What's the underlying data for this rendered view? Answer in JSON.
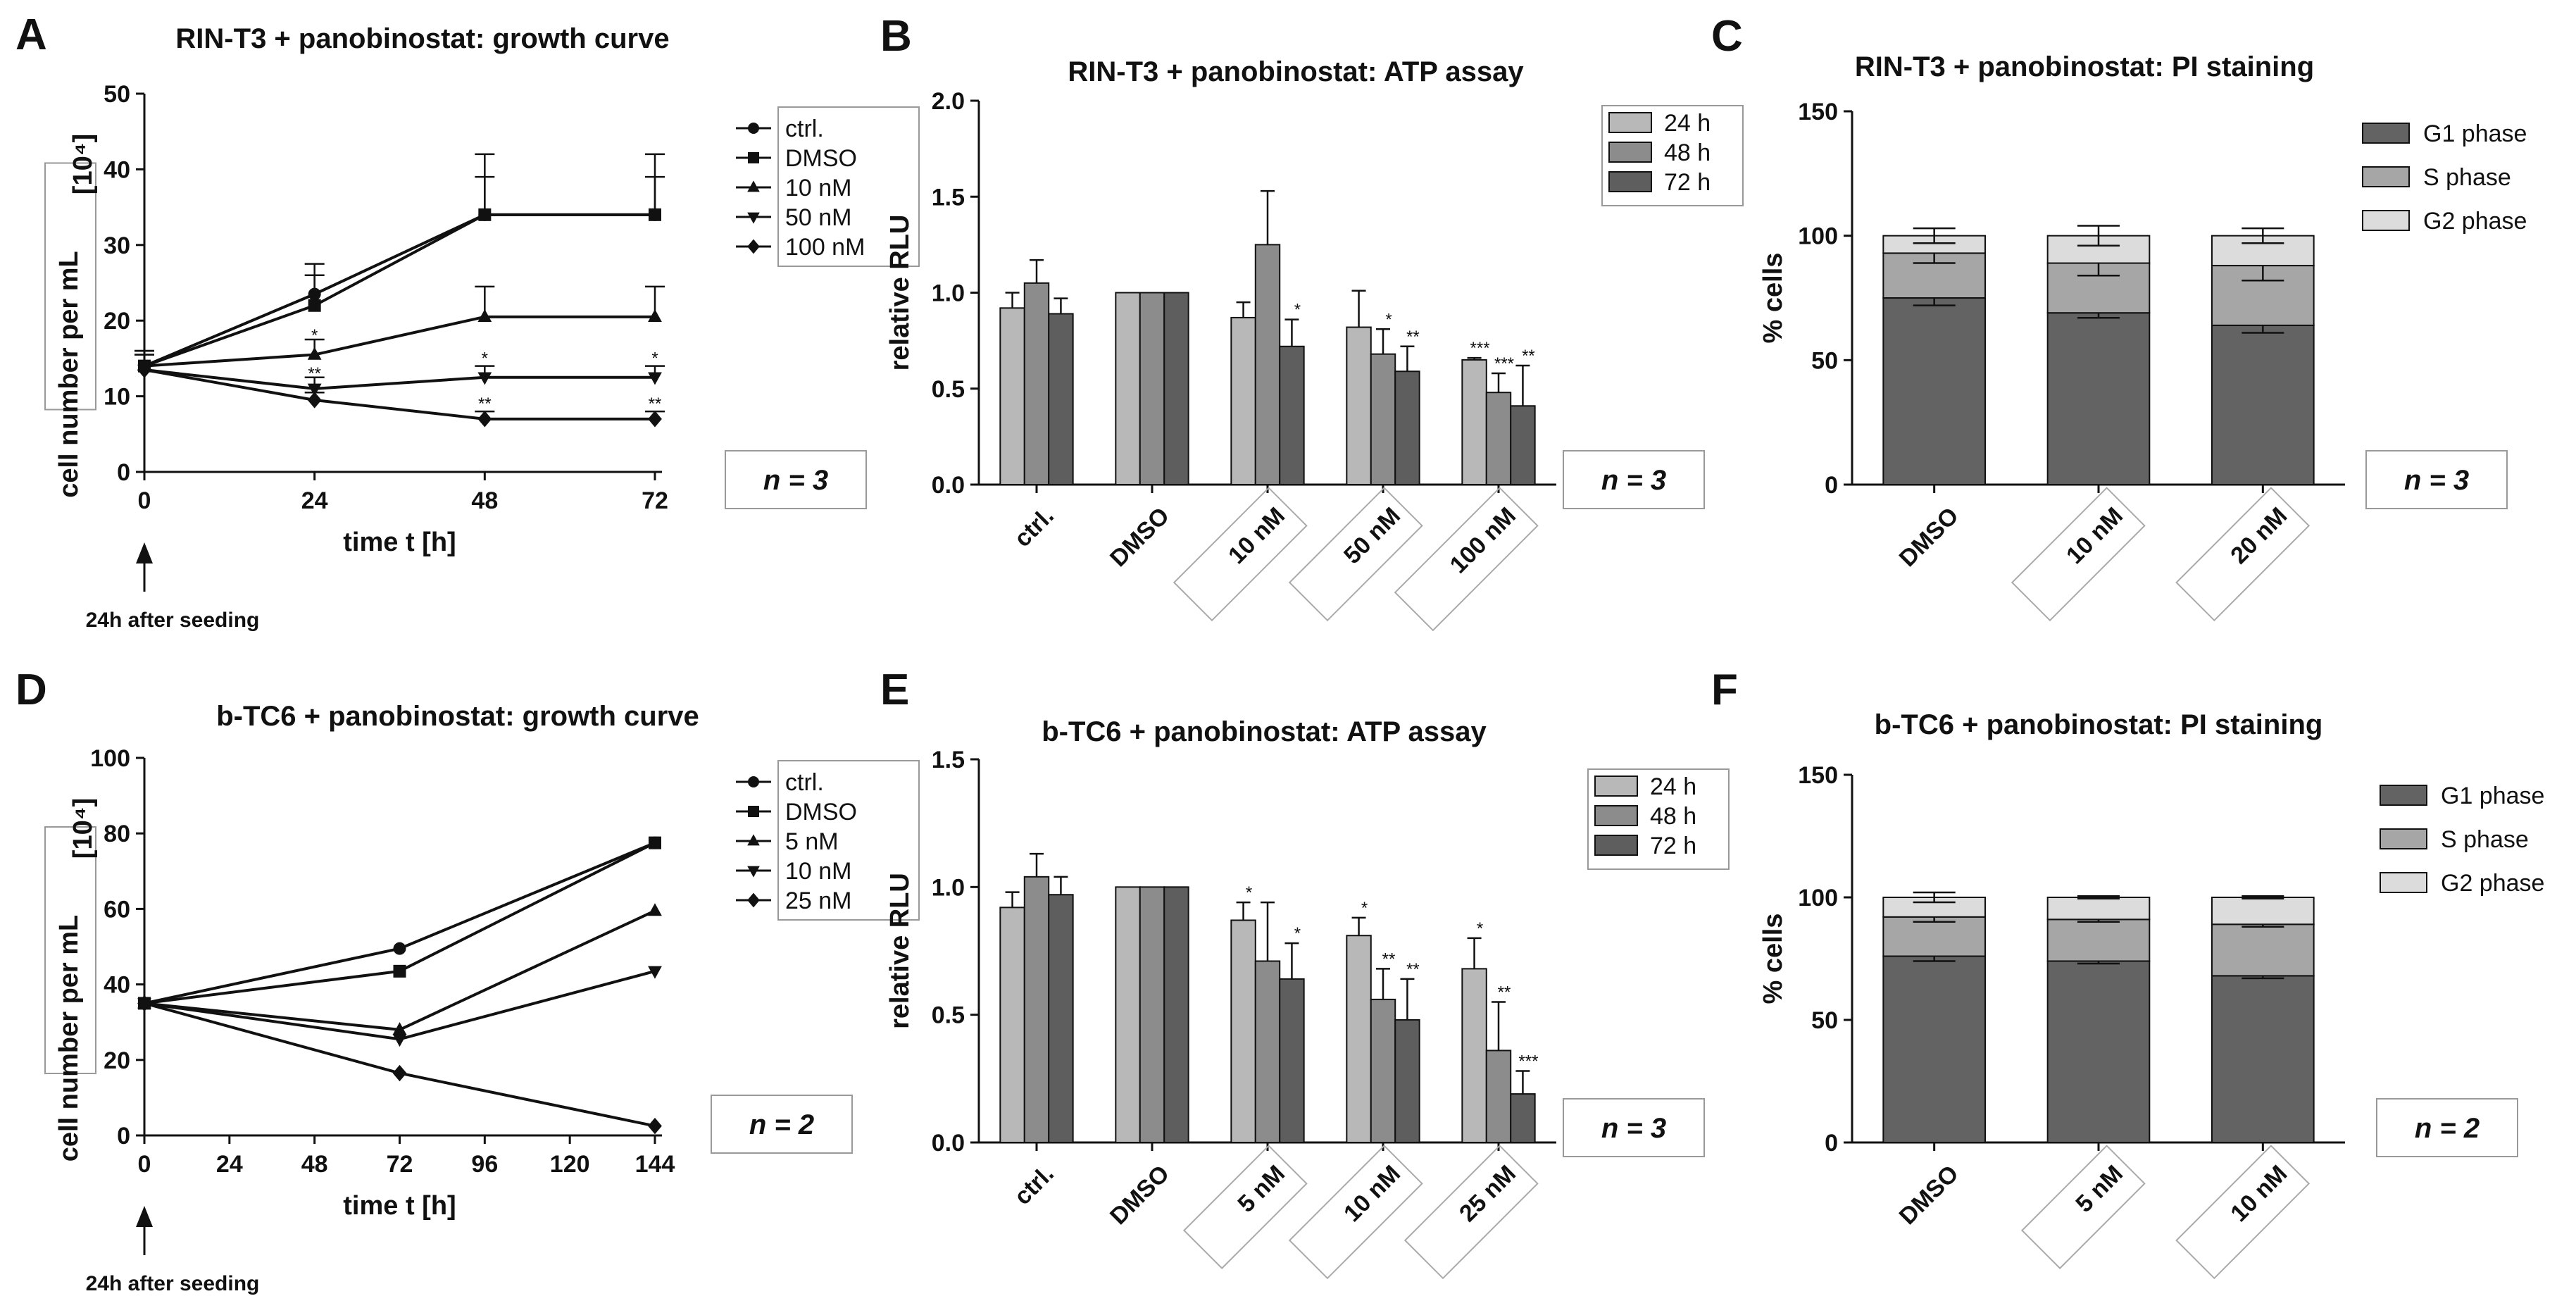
{
  "chart_data": [
    {
      "panel": "A",
      "type": "line",
      "title": "RIN-T3 + panobinostat: growth curve",
      "xlabel": "time t [h]",
      "ylabel": "cell number per mL",
      "yunit": "[10⁴]",
      "x": [
        0,
        24,
        48,
        72
      ],
      "xticks": [
        "0",
        "24",
        "48",
        "72"
      ],
      "ylim": [
        0,
        50
      ],
      "yticks": [
        "0",
        "10",
        "20",
        "30",
        "40",
        "50"
      ],
      "series": [
        {
          "name": "ctrl.",
          "marker": "circle",
          "values": [
            14,
            23.5,
            34,
            34
          ],
          "err": [
            2,
            4,
            5,
            5
          ]
        },
        {
          "name": "DMSO",
          "marker": "square",
          "values": [
            14,
            22,
            34,
            34
          ],
          "err": [
            2,
            4,
            8,
            8
          ]
        },
        {
          "name": "10 nM",
          "marker": "triangle-up",
          "values": [
            14,
            15.5,
            20.5,
            20.5
          ],
          "err": [
            2,
            2,
            4,
            4
          ]
        },
        {
          "name": "50 nM",
          "marker": "triangle-down",
          "values": [
            13.5,
            11,
            12.5,
            12.5
          ],
          "err": [
            2,
            1.5,
            1.5,
            1.5
          ]
        },
        {
          "name": "100 nM",
          "marker": "diamond",
          "values": [
            13.5,
            9.5,
            7,
            7
          ],
          "err": [
            2,
            1,
            1,
            1
          ]
        }
      ],
      "stars": [
        {
          "x": 24,
          "y": 17.3,
          "text": "*"
        },
        {
          "x": 24,
          "y": 12.3,
          "text": "**"
        },
        {
          "x": 48,
          "y": 14.3,
          "text": "*"
        },
        {
          "x": 48,
          "y": 8.3,
          "text": "**"
        },
        {
          "x": 72,
          "y": 14.3,
          "text": "*"
        },
        {
          "x": 72,
          "y": 8.3,
          "text": "**"
        }
      ],
      "n_label": "n = 3",
      "note": "24h after seeding"
    },
    {
      "panel": "B",
      "type": "bar",
      "title": "RIN-T3 + panobinostat: ATP  assay",
      "ylabel": "relative RLU",
      "categories": [
        "ctrl.",
        "DMSO",
        "10 nM",
        "50 nM",
        "100 nM"
      ],
      "boxed_categories": [
        2,
        3,
        4
      ],
      "ylim": [
        0,
        2
      ],
      "yticks": [
        "0.0",
        "0.5",
        "1.0",
        "1.5",
        "2.0"
      ],
      "series": [
        {
          "name": "24 h",
          "values": [
            0.92,
            1.0,
            0.87,
            0.82,
            0.65
          ],
          "err": [
            0.08,
            0,
            0.08,
            0.19,
            0.01
          ],
          "stars": [
            "",
            "",
            "",
            "",
            "***"
          ]
        },
        {
          "name": "48 h",
          "values": [
            1.05,
            1.0,
            1.25,
            0.68,
            0.48
          ],
          "err": [
            0.12,
            0,
            0.28,
            0.13,
            0.1
          ],
          "stars": [
            "",
            "",
            "",
            "*",
            "***"
          ]
        },
        {
          "name": "72 h",
          "values": [
            0.89,
            1.0,
            0.72,
            0.59,
            0.41
          ],
          "err": [
            0.08,
            0,
            0.14,
            0.13,
            0.21
          ],
          "stars": [
            "",
            "",
            "*",
            "**",
            "**"
          ]
        }
      ],
      "n_label": "n = 3"
    },
    {
      "panel": "C",
      "type": "bar",
      "stacked": true,
      "title": "RIN-T3 + panobinostat: PI staining",
      "ylabel": "% cells",
      "categories": [
        "DMSO",
        "10 nM",
        "20 nM"
      ],
      "boxed_categories": [
        1,
        2
      ],
      "ylim": [
        0,
        150
      ],
      "yticks": [
        "0",
        "50",
        "100",
        "150"
      ],
      "series": [
        {
          "name": "G1 phase",
          "values": [
            75,
            69,
            64
          ],
          "err": [
            3,
            2,
            3
          ]
        },
        {
          "name": "S phase",
          "values": [
            18,
            20,
            24
          ],
          "err": [
            4,
            5,
            6
          ]
        },
        {
          "name": "G2 phase",
          "values": [
            7,
            11,
            12
          ],
          "err": [
            3,
            4,
            3
          ]
        }
      ],
      "n_label": "n = 3"
    },
    {
      "panel": "D",
      "type": "line",
      "title": "b-TC6 + panobinostat: growth curve",
      "xlabel": "time t [h]",
      "ylabel": "cell number per mL",
      "yunit": "[10⁴]",
      "x": [
        0,
        72,
        144
      ],
      "xticks": [
        "0",
        "24",
        "48",
        "72",
        "96",
        "120",
        "144"
      ],
      "ylim": [
        0,
        100
      ],
      "yticks": [
        "0",
        "20",
        "40",
        "60",
        "80",
        "100"
      ],
      "series": [
        {
          "name": "ctrl.",
          "marker": "circle",
          "values": [
            35,
            49.5,
            77.5
          ],
          "err": [
            0,
            0,
            0
          ]
        },
        {
          "name": "DMSO",
          "marker": "square",
          "values": [
            35,
            43.5,
            77.5
          ],
          "err": [
            0,
            0,
            0
          ]
        },
        {
          "name": "5 nM",
          "marker": "triangle-up",
          "values": [
            35,
            28,
            59.5
          ],
          "err": [
            0,
            0,
            0
          ]
        },
        {
          "name": "10 nM",
          "marker": "triangle-down",
          "values": [
            35,
            25.5,
            43.5
          ],
          "err": [
            0,
            0,
            0
          ]
        },
        {
          "name": "25 nM",
          "marker": "diamond",
          "values": [
            35,
            16.5,
            2.5
          ],
          "err": [
            0,
            0,
            0
          ]
        }
      ],
      "stars": [],
      "n_label": "n = 2",
      "note": "24h after seeding"
    },
    {
      "panel": "E",
      "type": "bar",
      "title": "b-TC6 + panobinostat: ATP  assay",
      "ylabel": "relative RLU",
      "categories": [
        "ctrl.",
        "DMSO",
        "5 nM",
        "10 nM",
        "25 nM"
      ],
      "boxed_categories": [
        2,
        3,
        4
      ],
      "ylim": [
        0,
        1.5
      ],
      "yticks": [
        "0.0",
        "0.5",
        "1.0",
        "1.5"
      ],
      "series": [
        {
          "name": "24 h",
          "values": [
            0.92,
            1.0,
            0.87,
            0.81,
            0.68
          ],
          "err": [
            0.06,
            0,
            0.07,
            0.07,
            0.12
          ],
          "stars": [
            "",
            "",
            "*",
            "*",
            "*"
          ]
        },
        {
          "name": "48 h",
          "values": [
            1.04,
            1.0,
            0.71,
            0.56,
            0.36
          ],
          "err": [
            0.09,
            0,
            0.23,
            0.12,
            0.19
          ],
          "stars": [
            "",
            "",
            "",
            "**",
            "**"
          ]
        },
        {
          "name": "72 h",
          "values": [
            0.97,
            1.0,
            0.64,
            0.48,
            0.19
          ],
          "err": [
            0.07,
            0,
            0.14,
            0.16,
            0.09
          ],
          "stars": [
            "",
            "",
            "*",
            "**",
            "***"
          ]
        }
      ],
      "n_label": "n = 3"
    },
    {
      "panel": "F",
      "type": "bar",
      "stacked": true,
      "title": "b-TC6 + panobinostat: PI staining",
      "ylabel": "% cells",
      "categories": [
        "DMSO",
        "5 nM",
        "10 nM"
      ],
      "boxed_categories": [
        1,
        2
      ],
      "ylim": [
        0,
        150
      ],
      "yticks": [
        "0",
        "50",
        "100",
        "150"
      ],
      "series": [
        {
          "name": "G1 phase",
          "values": [
            76,
            74,
            68
          ],
          "err": [
            2,
            1,
            1
          ]
        },
        {
          "name": "S phase",
          "values": [
            16,
            17,
            21
          ],
          "err": [
            2,
            1,
            1
          ]
        },
        {
          "name": "G2 phase",
          "values": [
            8,
            9,
            11
          ],
          "err": [
            2,
            0.5,
            0.5
          ]
        }
      ],
      "n_label": "n = 2"
    }
  ],
  "colors": {
    "c24": "#b8b8b8",
    "c48": "#8c8c8c",
    "c72": "#5e5e5e",
    "g1": "#636363",
    "s": "#a6a6a6",
    "g2": "#dcdcdc",
    "axis": "#111111"
  }
}
